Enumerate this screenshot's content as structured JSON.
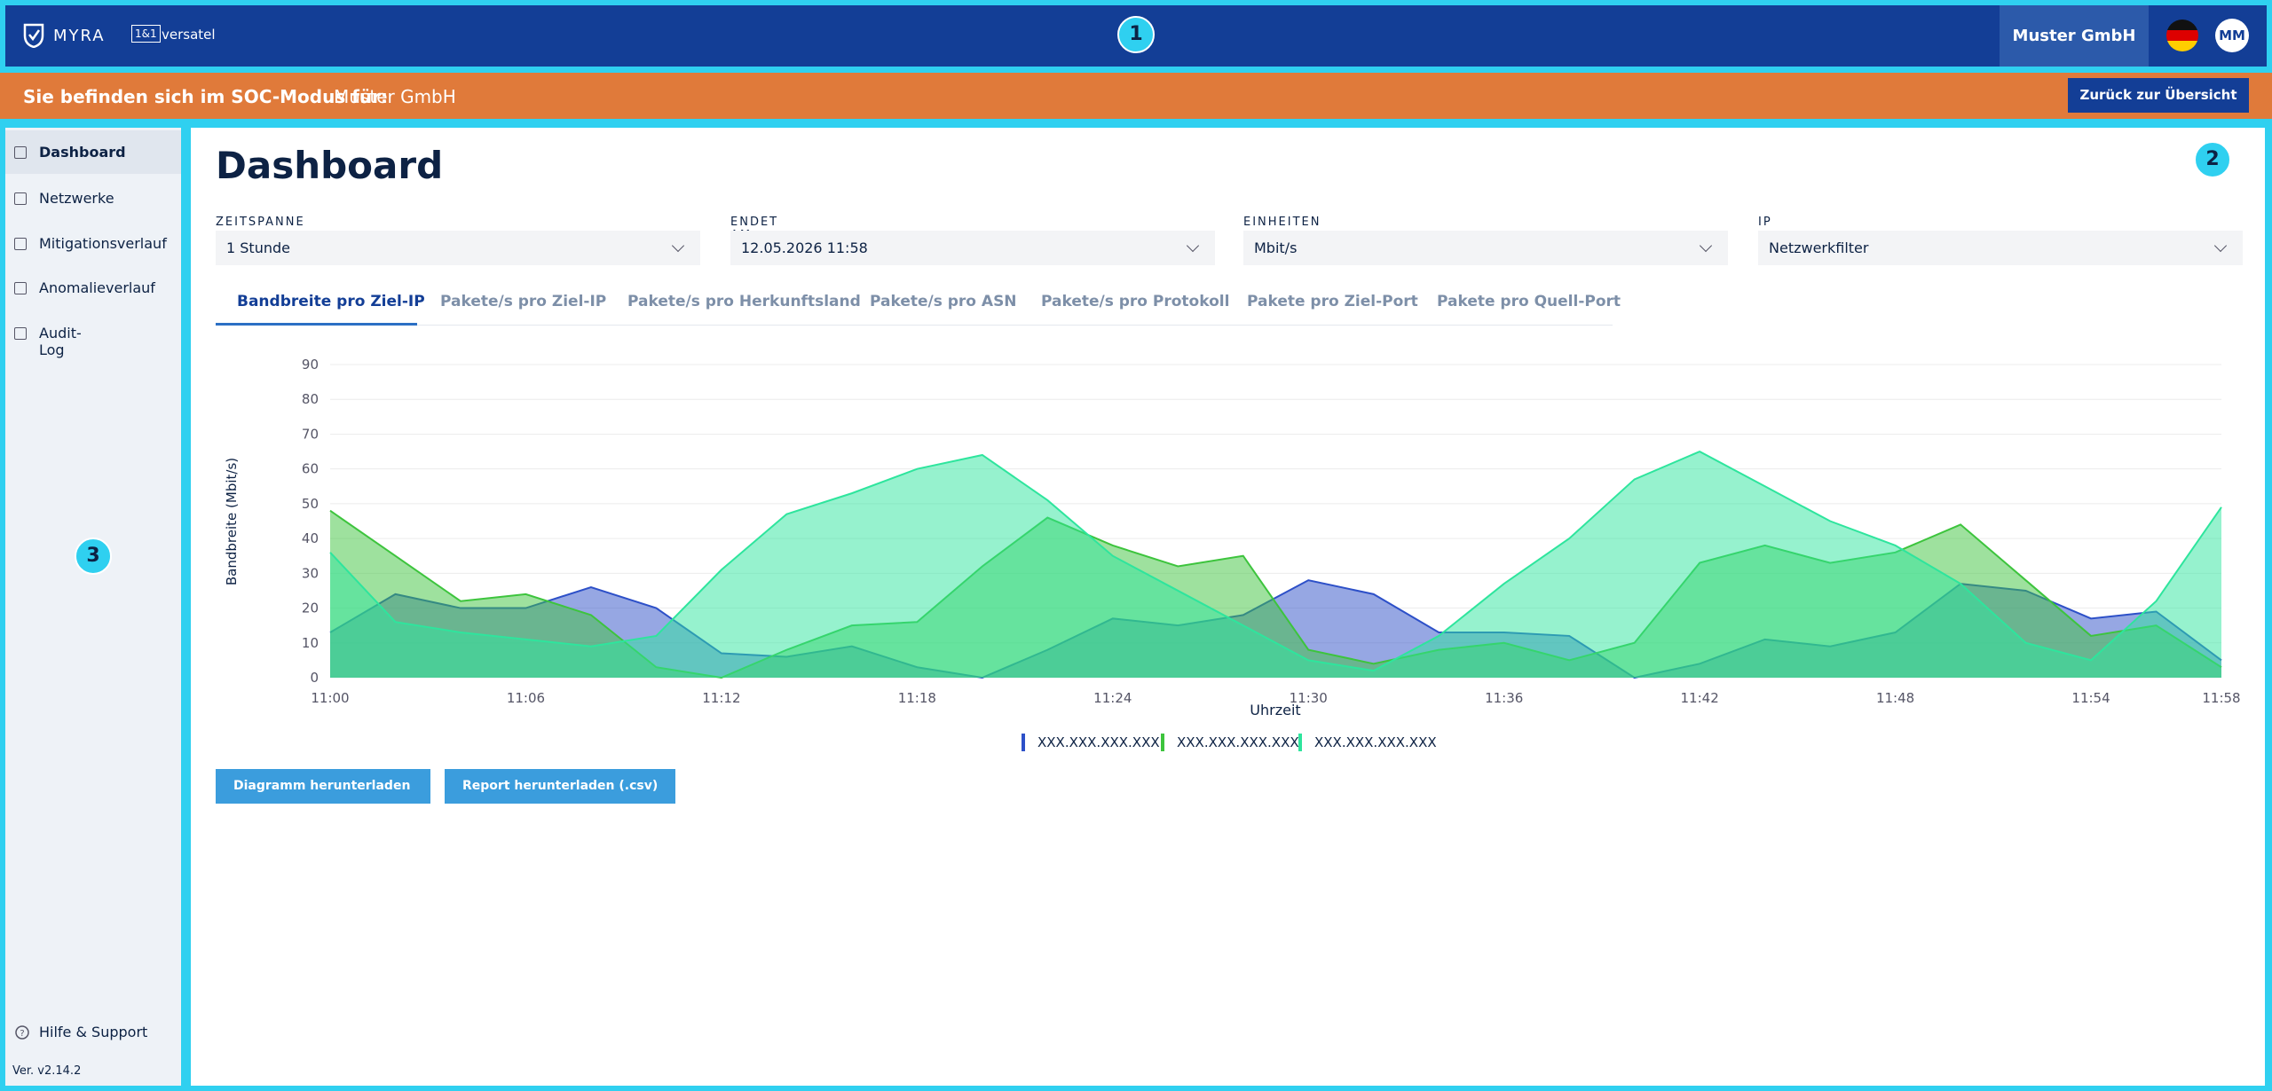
{
  "header": {
    "logo": "MYRA",
    "partner_badge": "1&1",
    "partner": "versatel",
    "company": "Muster GmbH",
    "avatar": "MM",
    "marker": "1"
  },
  "soc_bar": {
    "label": "Sie befinden sich im SOC-Modus für:",
    "company": "Muster GmbH",
    "button": "Zurück zur Übersicht"
  },
  "sidebar": {
    "items": [
      "Dashboard",
      "Netzwerke",
      "Mitigationsverlauf",
      "Anomalieverlauf",
      "Audit-Log"
    ],
    "help": "Hilfe & Support",
    "version": "Ver. v2.14.2",
    "marker": "3"
  },
  "main": {
    "title": "Dashboard",
    "marker": "2"
  },
  "filters": [
    {
      "label": "ZEITSPANNE",
      "value": "1 Stunde"
    },
    {
      "label": "ENDET AM",
      "value": "12.05.2026 11:58"
    },
    {
      "label": "EINHEITEN",
      "value": "Mbit/s"
    },
    {
      "label": "IP",
      "value": "Netzwerkfilter"
    }
  ],
  "tabs": [
    "Bandbreite pro Ziel-IP",
    "Pakete/s pro Ziel-IP",
    "Pakete/s pro Herkunftsland",
    "Pakete/s pro ASN",
    "Pakete/s pro Protokoll",
    "Pakete pro Ziel-Port",
    "Pakete pro Quell-Port"
  ],
  "buttons": [
    "Diagramm herunterladen",
    "Report herunterladen (.csv)"
  ],
  "chart_data": {
    "type": "area",
    "x_label": "Uhrzeit",
    "y_label": "Bandbreite (Mbit/s)",
    "categories": [
      "11:00",
      null,
      null,
      "11:06",
      null,
      null,
      "11:12",
      null,
      null,
      "11:18",
      null,
      null,
      "11:24",
      null,
      null,
      "11:30",
      null,
      null,
      "11:36",
      null,
      null,
      "11:42",
      null,
      null,
      "11:48",
      null,
      null,
      "11:54",
      null,
      "11:58"
    ],
    "series": [
      {
        "name": "XXX.XXX.XXX.XXX",
        "color": "#2d50c8",
        "values": [
          13,
          24,
          20,
          20,
          26,
          20,
          7,
          6,
          9,
          3,
          0,
          8,
          17,
          15,
          18,
          28,
          24,
          13,
          13,
          12,
          0,
          4,
          11,
          9,
          13,
          27,
          25,
          17,
          19,
          5
        ]
      },
      {
        "name": "XXX.XXX.XXX.XXX",
        "color": "#3dc43d",
        "values": [
          48,
          35,
          22,
          24,
          18,
          3,
          0,
          8,
          15,
          16,
          32,
          46,
          38,
          32,
          35,
          8,
          4,
          8,
          10,
          5,
          10,
          33,
          38,
          33,
          36,
          44,
          28,
          12,
          15,
          3
        ]
      },
      {
        "name": "XXX.XXX.XXX.XXX",
        "color": "#2ee59d",
        "values": [
          36,
          16,
          13,
          11,
          9,
          12,
          31,
          47,
          53,
          60,
          64,
          51,
          35,
          25,
          15,
          5,
          2,
          12,
          27,
          40,
          57,
          65,
          55,
          45,
          38,
          27,
          10,
          5,
          22,
          49
        ]
      }
    ],
    "ylim": [
      0,
      90
    ],
    "yticks": [
      0,
      10,
      20,
      30,
      40,
      50,
      60,
      70,
      80,
      90
    ],
    "grid": true
  }
}
